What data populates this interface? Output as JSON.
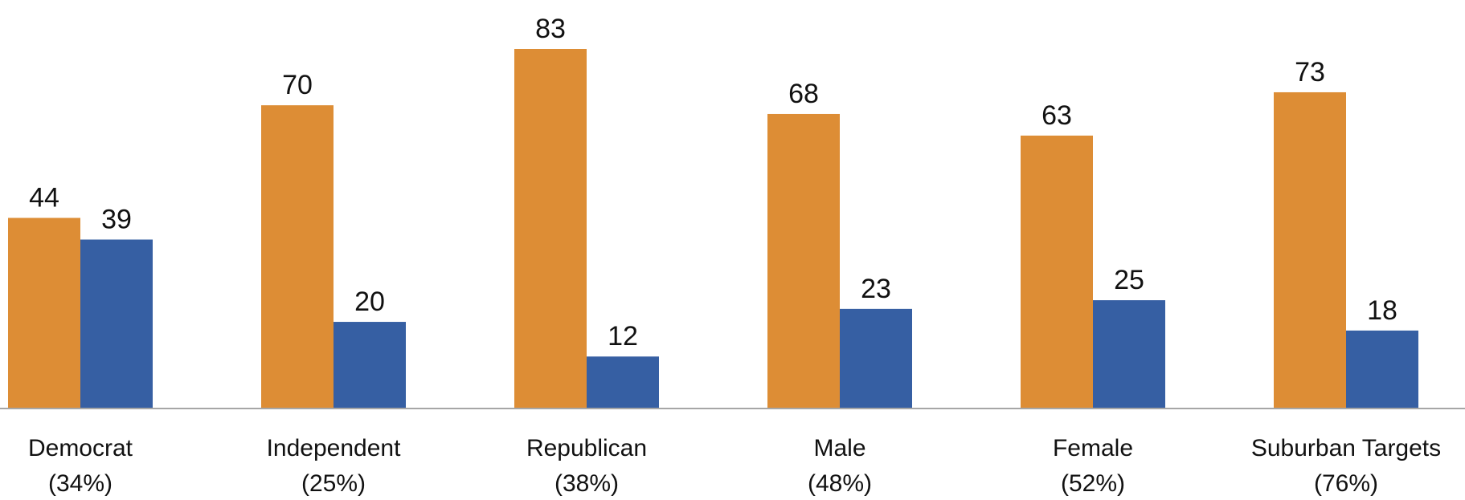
{
  "chart_data": {
    "type": "bar",
    "categories": [
      [
        "Democrat",
        "(34%)"
      ],
      [
        "Independent",
        "(25%)"
      ],
      [
        "Republican",
        "(38%)"
      ],
      [
        "Male",
        "(48%)"
      ],
      [
        "Female",
        "(52%)"
      ],
      [
        "Suburban Targets",
        "(76%)"
      ]
    ],
    "series": [
      {
        "values": [
          44,
          70,
          83,
          68,
          63,
          73
        ],
        "color": "#DD8D35"
      },
      {
        "values": [
          39,
          20,
          12,
          23,
          25,
          18
        ],
        "color": "#365FA3"
      }
    ],
    "ylim": [
      0,
      83
    ],
    "grid": false,
    "legend": "none",
    "data_labels": true,
    "axis_color": "#A6A6A6"
  }
}
